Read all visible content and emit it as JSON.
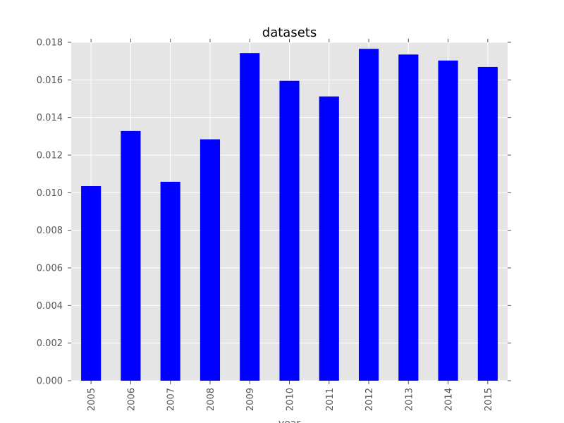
{
  "chart_data": {
    "type": "bar",
    "title": "datasets",
    "xlabel": "year",
    "ylabel": "",
    "categories": [
      "2005",
      "2006",
      "2007",
      "2008",
      "2009",
      "2010",
      "2011",
      "2012",
      "2013",
      "2014",
      "2015"
    ],
    "values": [
      0.01035,
      0.01328,
      0.01058,
      0.01284,
      0.01743,
      0.01595,
      0.01512,
      0.01765,
      0.01735,
      0.01703,
      0.01669
    ],
    "ylim": [
      0,
      0.018
    ],
    "yticks": [
      "0.000",
      "0.002",
      "0.004",
      "0.006",
      "0.008",
      "0.010",
      "0.012",
      "0.014",
      "0.016",
      "0.018"
    ],
    "grid": true,
    "legend": "none",
    "colors": {
      "bar": "#0000ff",
      "plot_background": "#e5e5e5",
      "grid": "#ffffff"
    }
  }
}
